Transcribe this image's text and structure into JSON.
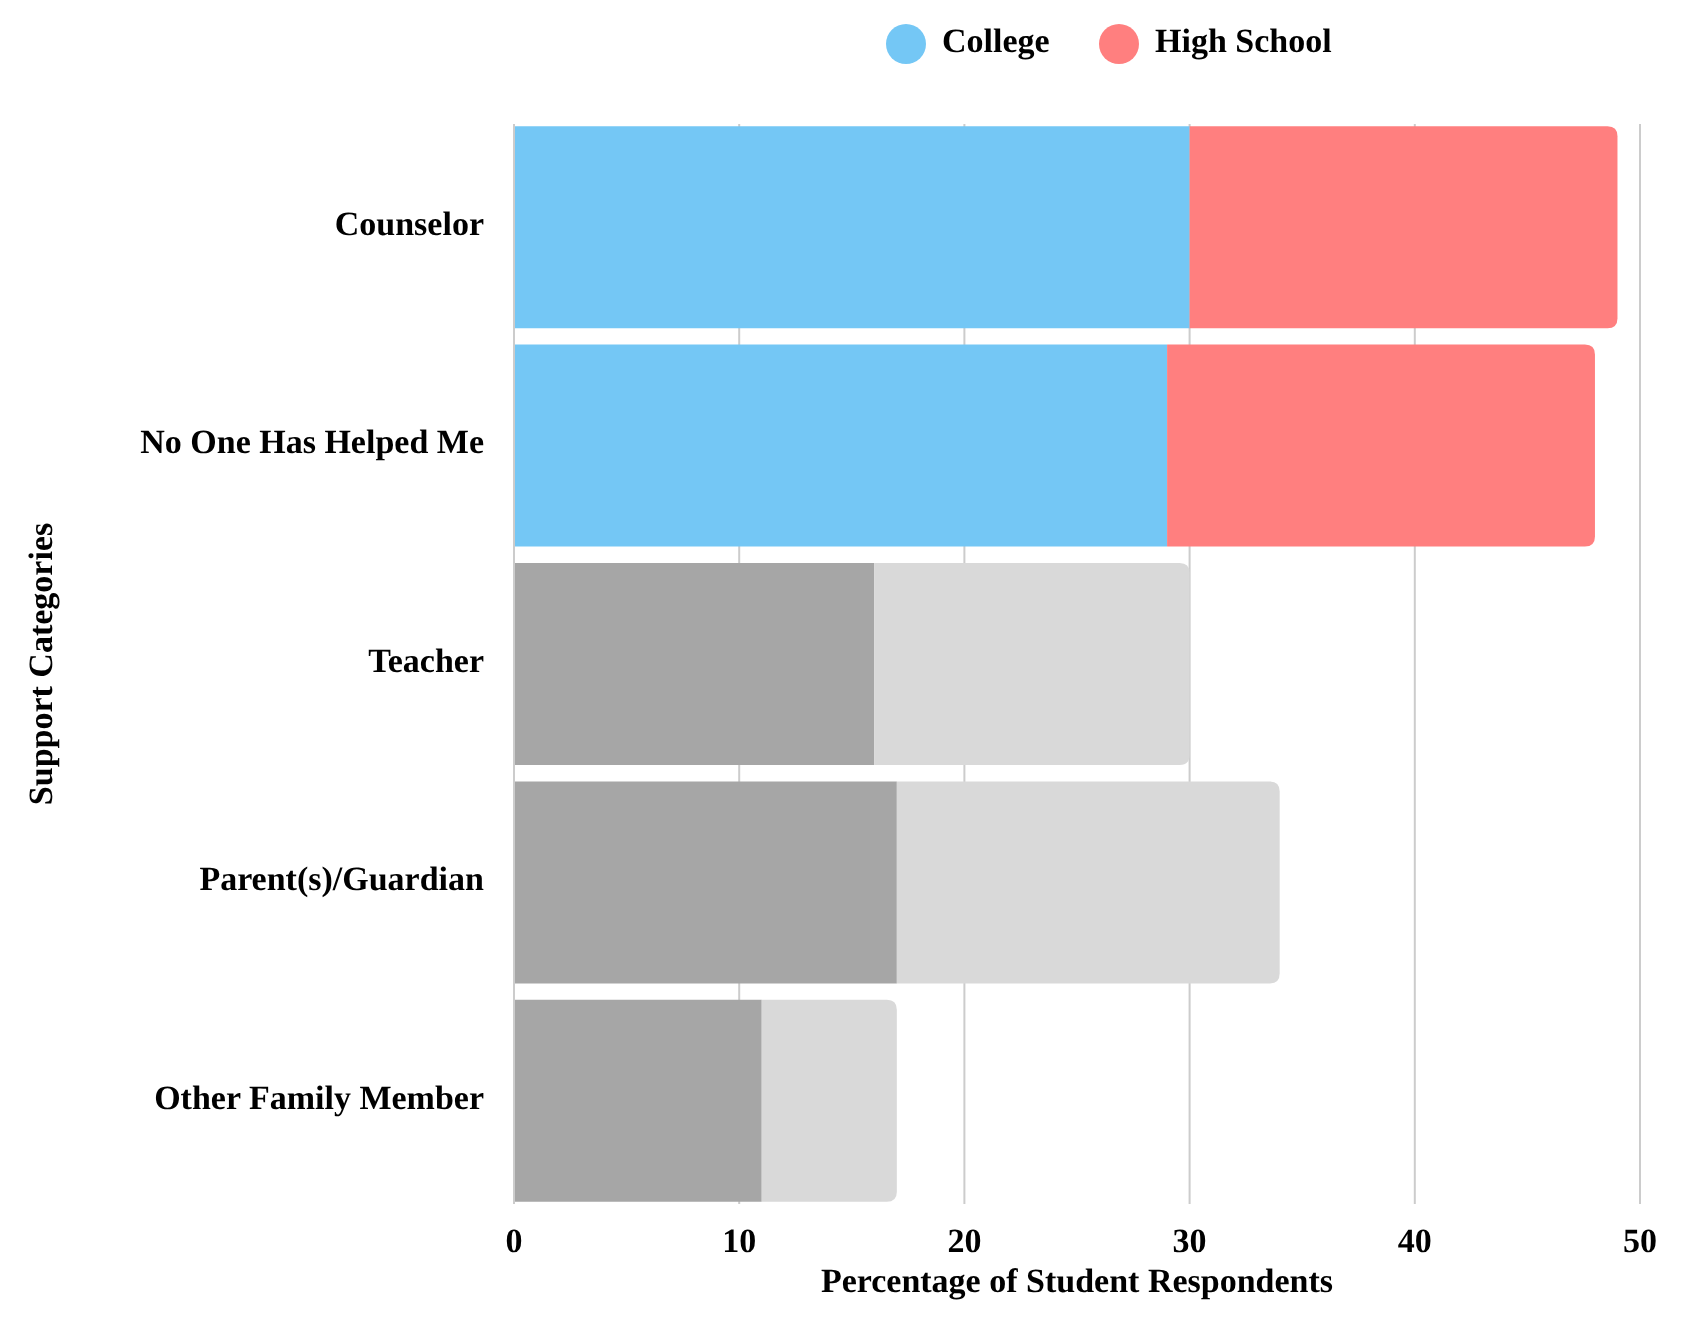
{
  "chart_data": {
    "type": "bar",
    "orientation": "horizontal",
    "stacked": true,
    "xlabel": "Percentage of Student Respondents",
    "ylabel": "Support Categories",
    "categories": [
      "Counselor",
      "No One Has Helped Me",
      "Teacher",
      "Parent(s)/Guardian",
      "Other Family Member"
    ],
    "series": [
      {
        "name": "College",
        "color": "#74c7f5",
        "colors": [
          "#74c7f5",
          "#74c7f5",
          "#a6a6a6",
          "#a6a6a6",
          "#a6a6a6"
        ],
        "values": [
          30,
          29,
          16,
          17,
          11
        ]
      },
      {
        "name": "High School",
        "color": "#ff7f7f",
        "colors": [
          "#ff7f7f",
          "#ff7f7f",
          "#d9d9d9",
          "#d9d9d9",
          "#d9d9d9"
        ],
        "values": [
          19,
          19,
          14,
          17,
          6
        ]
      }
    ],
    "xlim": [
      0,
      50
    ],
    "xticks": [
      0,
      10,
      20,
      30,
      40,
      50
    ],
    "grid": "x",
    "legend": "top"
  }
}
